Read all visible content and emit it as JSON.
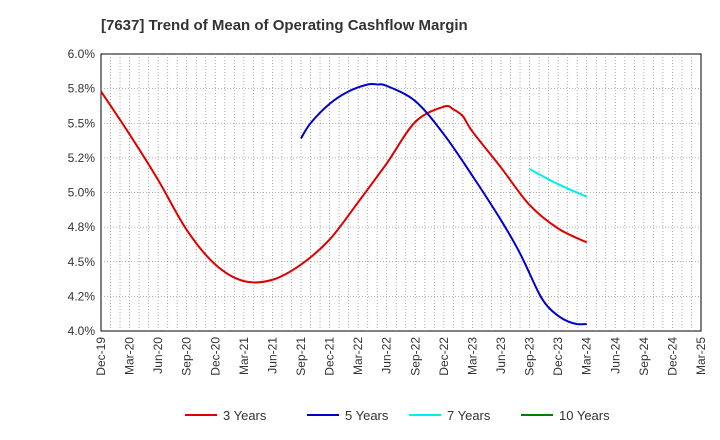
{
  "chart_data": {
    "type": "line",
    "title": "[7637]  Trend of Mean of Operating Cashflow Margin",
    "xlabel": "",
    "ylabel": "",
    "ylim": [
      4.0,
      6.0
    ],
    "y_ticks": [
      "4.0%",
      "4.2%",
      "4.5%",
      "4.8%",
      "5.0%",
      "5.2%",
      "5.5%",
      "5.8%",
      "6.0%"
    ],
    "categories": [
      "Dec-19",
      "Mar-20",
      "Jun-20",
      "Sep-20",
      "Dec-20",
      "Mar-21",
      "Jun-21",
      "Sep-21",
      "Dec-21",
      "Mar-22",
      "Jun-22",
      "Sep-22",
      "Dec-22",
      "Mar-23",
      "Jun-23",
      "Sep-23",
      "Dec-23",
      "Mar-24",
      "Jun-24",
      "Sep-24",
      "Dec-24",
      "Mar-25"
    ],
    "grid": true,
    "legend_position": "bottom",
    "series": [
      {
        "name": "3 Years",
        "color": "#dd0000",
        "points": [
          [
            "Dec-19",
            5.73
          ],
          [
            "Mar-20",
            5.42
          ],
          [
            "Jun-20",
            5.09
          ],
          [
            "Sep-20",
            4.73
          ],
          [
            "Dec-20",
            4.48
          ],
          [
            "Mar-21",
            4.36
          ],
          [
            "Jun-21",
            4.37
          ],
          [
            "Sep-21",
            4.48
          ],
          [
            "Dec-21",
            4.66
          ],
          [
            "Mar-22",
            4.93
          ],
          [
            "Jun-22",
            5.21
          ],
          [
            "Sep-22",
            5.51
          ],
          [
            "Dec-22",
            5.62
          ],
          [
            "Jan-23",
            5.6
          ],
          [
            "Feb-23",
            5.55
          ],
          [
            "Mar-23",
            5.44
          ],
          [
            "Jun-23",
            5.18
          ],
          [
            "Sep-23",
            4.91
          ],
          [
            "Dec-23",
            4.74
          ],
          [
            "Mar-24",
            4.64
          ]
        ]
      },
      {
        "name": "5 Years",
        "color": "#0000cc",
        "points": [
          [
            "Sep-21",
            5.39
          ],
          [
            "Oct-21",
            5.5
          ],
          [
            "Dec-21",
            5.64
          ],
          [
            "Feb-22",
            5.73
          ],
          [
            "Apr-22",
            5.78
          ],
          [
            "May-22",
            5.78
          ],
          [
            "Jun-22",
            5.77
          ],
          [
            "Sep-22",
            5.66
          ],
          [
            "Dec-22",
            5.42
          ],
          [
            "Mar-23",
            5.12
          ],
          [
            "Jun-23",
            4.8
          ],
          [
            "Aug-23",
            4.56
          ],
          [
            "Oct-23",
            4.27
          ],
          [
            "Nov-23",
            4.17
          ],
          [
            "Dec-23",
            4.11
          ],
          [
            "Jan-24",
            4.07
          ],
          [
            "Feb-24",
            4.05
          ],
          [
            "Mar-24",
            4.05
          ]
        ]
      },
      {
        "name": "7 Years",
        "color": "#00eeee",
        "points": [
          [
            "Sep-23",
            5.17
          ],
          [
            "Dec-23",
            5.06
          ],
          [
            "Mar-24",
            4.97
          ]
        ]
      },
      {
        "name": "10 Years",
        "color": "#008000",
        "points": []
      }
    ]
  }
}
